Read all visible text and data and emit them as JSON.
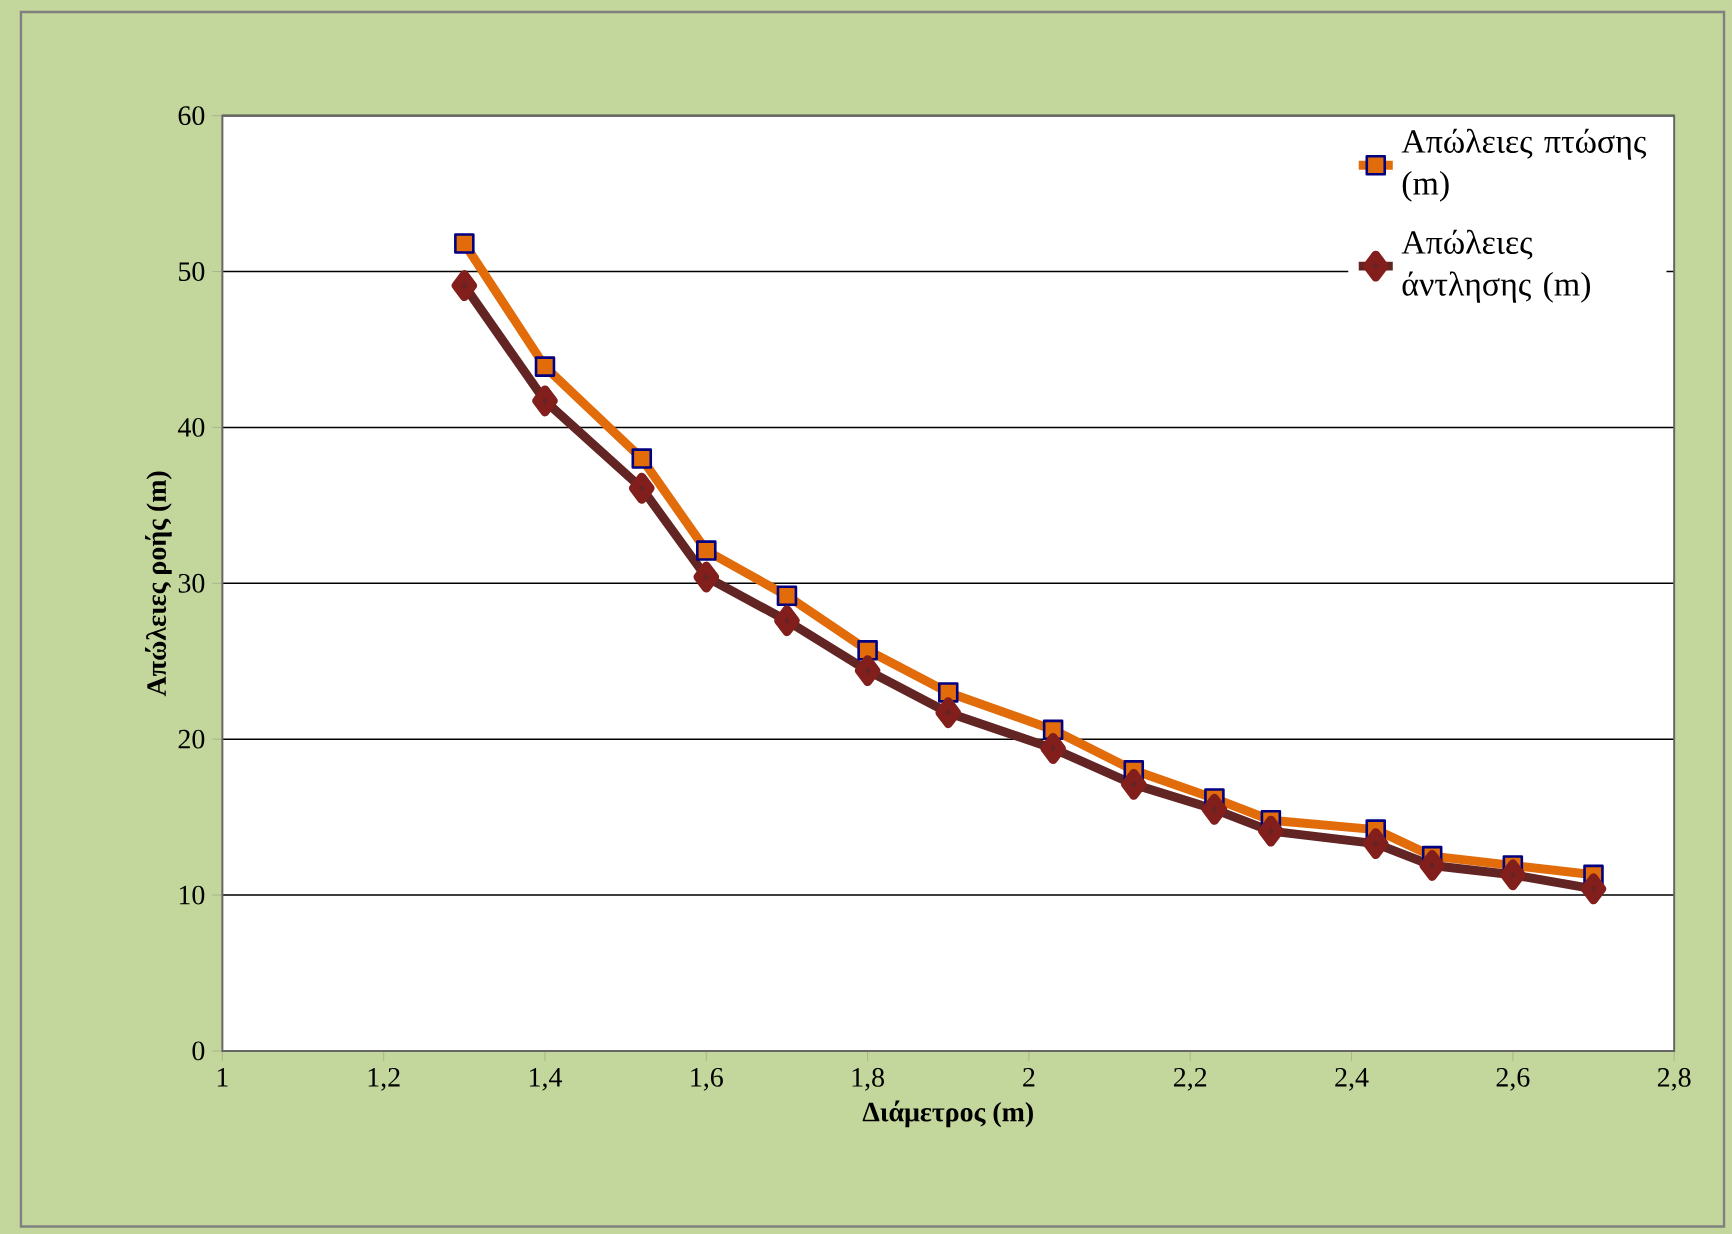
{
  "chart_data": {
    "type": "line",
    "xlabel": "Διάμετρος (m)",
    "ylabel": "Απώλειες ροής (m)",
    "x": [
      1.3,
      1.4,
      1.52,
      1.6,
      1.7,
      1.8,
      1.9,
      2.03,
      2.13,
      2.23,
      2.3,
      2.43,
      2.5,
      2.6,
      2.7
    ],
    "series": [
      {
        "name": "Απώλειες πτώσης (m)",
        "color": "#e36c0a",
        "marker": "square",
        "values": [
          51.8,
          43.9,
          38.0,
          32.1,
          29.2,
          25.7,
          23.0,
          20.6,
          18.0,
          16.2,
          14.8,
          14.2,
          12.5,
          11.9,
          11.3
        ]
      },
      {
        "name": "Απώλειες άντλησης (m)",
        "color": "#632523",
        "marker": "diamond",
        "values": [
          49.1,
          41.7,
          36.1,
          30.4,
          27.6,
          24.4,
          21.7,
          19.4,
          17.1,
          15.5,
          14.1,
          13.3,
          11.9,
          11.3,
          10.4
        ]
      }
    ],
    "xlim": [
      1,
      2.8
    ],
    "xticks": [
      1,
      {
        "value": 1.2,
        "label": "1,2"
      },
      {
        "value": 1.4,
        "label": "1,4"
      },
      {
        "value": 1.6,
        "label": "1,6"
      },
      {
        "value": 1.8,
        "label": "1,8"
      },
      2,
      {
        "value": 2.2,
        "label": "2,2"
      },
      {
        "value": 2.4,
        "label": "2,4"
      },
      {
        "value": 2.6,
        "label": "2,6"
      },
      {
        "value": 2.8,
        "label": "2,8"
      }
    ],
    "ylim": [
      0,
      60
    ],
    "yticks": [
      0,
      10,
      20,
      30,
      40,
      50,
      60
    ],
    "grid": "y",
    "legend": "top right",
    "line_style": "solid"
  }
}
